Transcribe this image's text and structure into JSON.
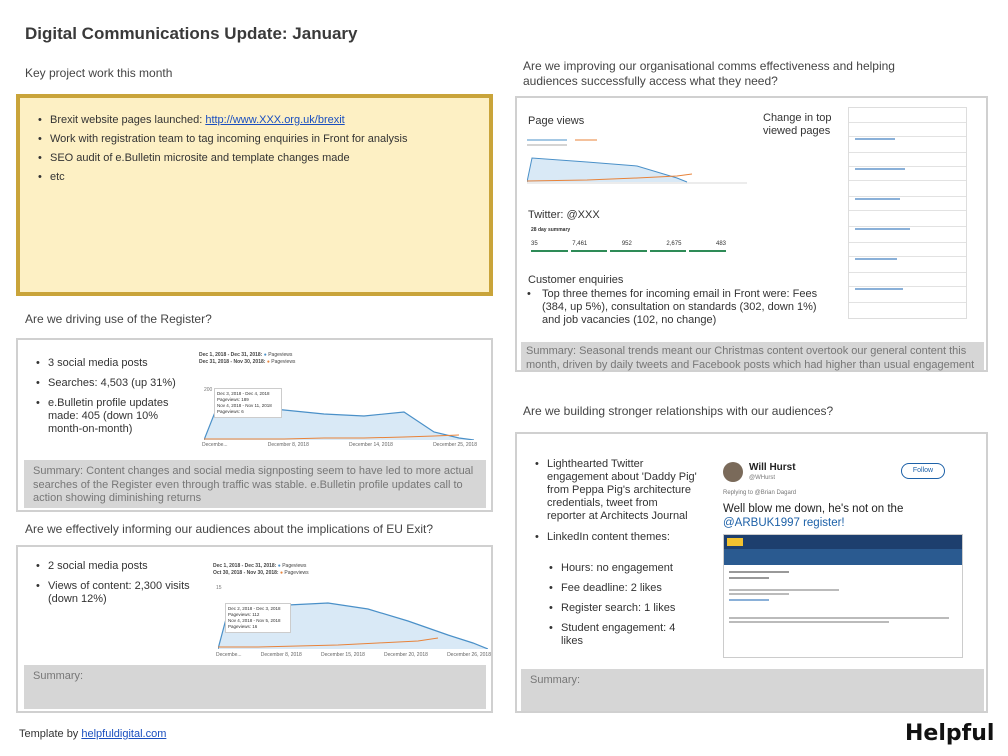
{
  "title": "Digital Communications Update: January",
  "key_work": {
    "heading": "Key project work this month",
    "items": [
      {
        "text": "Brexit website pages launched: ",
        "link": "http://www.XXX.org.uk/brexit"
      },
      {
        "text": "Work with registration team to tag incoming enquiries in Front for analysis"
      },
      {
        "text": "SEO audit of e.Bulletin microsite and template changes made"
      },
      {
        "text": "etc"
      }
    ]
  },
  "register": {
    "heading": "Are we driving use of the Register?",
    "items": [
      "3 social media posts",
      "Searches: 4,503 (up 31%)",
      "e.Bulletin profile updates made: 405 (down 10% month-on-month)"
    ],
    "summary": "Summary: Content changes and social media signposting seem to have led to more actual searches of the Register even through traffic was stable. e.Bulletin profile updates call to action showing diminishing returns",
    "chart": {
      "legend": [
        "Dec 1, 2018 - Dec 31, 2018:",
        "Pageviews",
        "Dec 31, 2018 - Nov 30, 2018:",
        "Pageviews"
      ],
      "y_tick": "200",
      "x_ticks": [
        "Decembe...",
        "December 8, 2018",
        "December 14, 2018",
        "December 25, 2018"
      ],
      "tooltip": [
        "Dec 3, 2018 - Dec 4, 2018",
        "Pageviews: 189",
        "Nov 4, 2018 - Nov 11, 2018",
        "Pageviews: 6"
      ]
    }
  },
  "eu_exit": {
    "heading": "Are we effectively informing our audiences about the implications of EU Exit?",
    "items": [
      "2 social media posts",
      "Views of content: 2,300 visits (down 12%)"
    ],
    "summary": "Summary:",
    "chart": {
      "legend": [
        "Dec 1, 2018 - Dec 31, 2018:",
        "Pageviews",
        "Oct 30, 2018 - Nov 30, 2018:",
        "Pageviews"
      ],
      "y_tick": "15",
      "x_ticks": [
        "Decembe...",
        "December 8, 2018",
        "December 15, 2018",
        "December 20, 2018",
        "December 26, 2018"
      ],
      "tooltip": [
        "Dec 2, 2018 - Dec 3, 2018",
        "Pageviews: 112",
        "Nov 4, 2018 - Nov 5, 2018",
        "Pageviews: 16"
      ]
    }
  },
  "effectiveness": {
    "heading": "Are we improving our organisational comms effectiveness and helping audiences successfully access what they need?",
    "page_views_label": "Page views",
    "change_label": "Change in top viewed pages",
    "twitter_label": "Twitter: @XXX",
    "twitter_summary_title": "28 day summary",
    "twitter_stats": [
      "35",
      "7,461",
      "952",
      "2,675",
      "483"
    ],
    "enquiries_label": "Customer enquiries",
    "enquiries_item": "Top three themes for incoming email in Front were: Fees (384, up 5%), consultation on standards (302, down 1%) and job vacancies (102, no change)",
    "summary": "Summary: Seasonal trends meant our Christmas content overtook our general content this month, driven by daily tweets and Facebook posts which had higher than usual engagement"
  },
  "relationships": {
    "heading": "Are we building stronger relationships with our audiences?",
    "twitter_item": "Lighthearted Twitter engagement about 'Daddy Pig' from Peppa Pig's architecture credentials, tweet from reporter at Architects Journal",
    "linkedin_item": "LinkedIn content themes:",
    "linkedin_subitems": [
      "Hours: no engagement",
      "Fee deadline: 2 likes",
      "Register search: 1 likes",
      "Student engagement: 4 likes"
    ],
    "tweet": {
      "name": "Will Hurst",
      "handle": "@WHurst",
      "follow_label": "Follow",
      "replying": "Replying to @Brian Dagard",
      "text_line1": "Well blow me down, he's not on the",
      "text_line2": "@ARBUK1997 register!"
    },
    "summary": "Summary:"
  },
  "footer": {
    "template_text": "Template by ",
    "template_link": "helpfuldigital.com",
    "logo": "Helpful"
  },
  "colors": {
    "accent_yellow": "#fdf0c4",
    "yellow_border": "#c9a43a",
    "summary_grey": "#d6d6d6",
    "series_blue": "#4a90c8",
    "series_orange": "#e8833a",
    "twitter_blue": "#1d61a8"
  }
}
